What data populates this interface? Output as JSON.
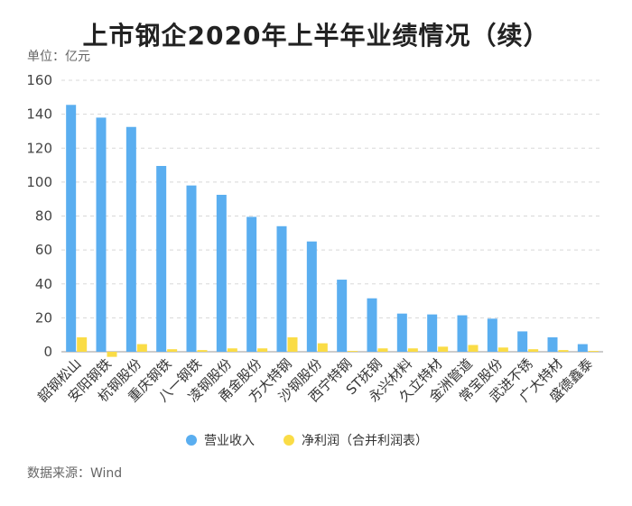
{
  "title": "上市钢企2020年上半年业绩情况（续）",
  "unit_label": "单位：亿元",
  "source_label": "数据来源：Wind",
  "colors": {
    "revenue": "#5aaef0",
    "profit": "#fadc46",
    "grid": "#d8d8d8",
    "axis": "#999999"
  },
  "chart_data": {
    "type": "bar",
    "title": "上市钢企2020年上半年业绩情况（续）",
    "ylabel": "单位：亿元",
    "ylim": [
      0,
      160
    ],
    "yticks": [
      0,
      20,
      40,
      60,
      80,
      100,
      120,
      140,
      160
    ],
    "categories": [
      "韶钢松山",
      "安阳钢铁",
      "杭钢股份",
      "重庆钢铁",
      "八一钢铁",
      "凌钢股份",
      "甬金股份",
      "方大特钢",
      "沙钢股份",
      "西宁特钢",
      "ST抚钢",
      "永兴材料",
      "久立特材",
      "金洲管道",
      "常宝股份",
      "武进不锈",
      "广大特材",
      "盛德鑫泰"
    ],
    "series": [
      {
        "name": "营业收入",
        "values": [
          145.5,
          138,
          132.5,
          109.5,
          98,
          92.5,
          79.5,
          74,
          65,
          42.5,
          31.5,
          22.5,
          22,
          21.5,
          19.5,
          12,
          8.5,
          4.5
        ]
      },
      {
        "name": "净利润（合并利润表）",
        "values": [
          8.5,
          -3,
          4.5,
          1.5,
          1,
          2,
          2,
          8.5,
          5,
          0.5,
          2,
          2,
          3,
          4,
          2.5,
          1.5,
          1,
          0.5
        ]
      }
    ],
    "legend": "bottom-center"
  }
}
